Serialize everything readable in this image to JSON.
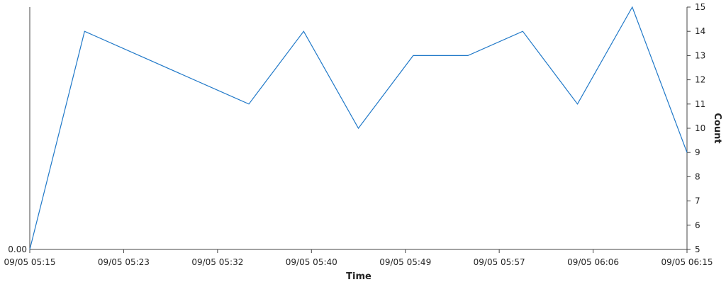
{
  "chart_data": {
    "type": "line",
    "title": "",
    "xlabel": "Time",
    "ylabel": "Count",
    "left_axis_tick_label": "0.00",
    "x_tick_labels": [
      "09/05 05:15",
      "09/05 05:23",
      "09/05 05:32",
      "09/05 05:40",
      "09/05 05:49",
      "09/05 05:57",
      "09/05 06:06",
      "09/05 06:15"
    ],
    "y_ticks": [
      5,
      6,
      7,
      8,
      9,
      10,
      11,
      12,
      13,
      14,
      15
    ],
    "ylim": [
      5,
      15
    ],
    "grid": false,
    "legend": "none",
    "series": [
      {
        "color": "#1f78c8",
        "x": [
          "09/05 05:15",
          "09/05 05:20",
          "09/05 05:35",
          "09/05 05:40",
          "09/05 05:45",
          "09/05 05:50",
          "09/05 05:55",
          "09/05 06:00",
          "09/05 06:05",
          "09/05 06:10",
          "09/05 06:15"
        ],
        "values": [
          5,
          14,
          11,
          14,
          10,
          13,
          13,
          14,
          11,
          15,
          9
        ]
      }
    ]
  }
}
